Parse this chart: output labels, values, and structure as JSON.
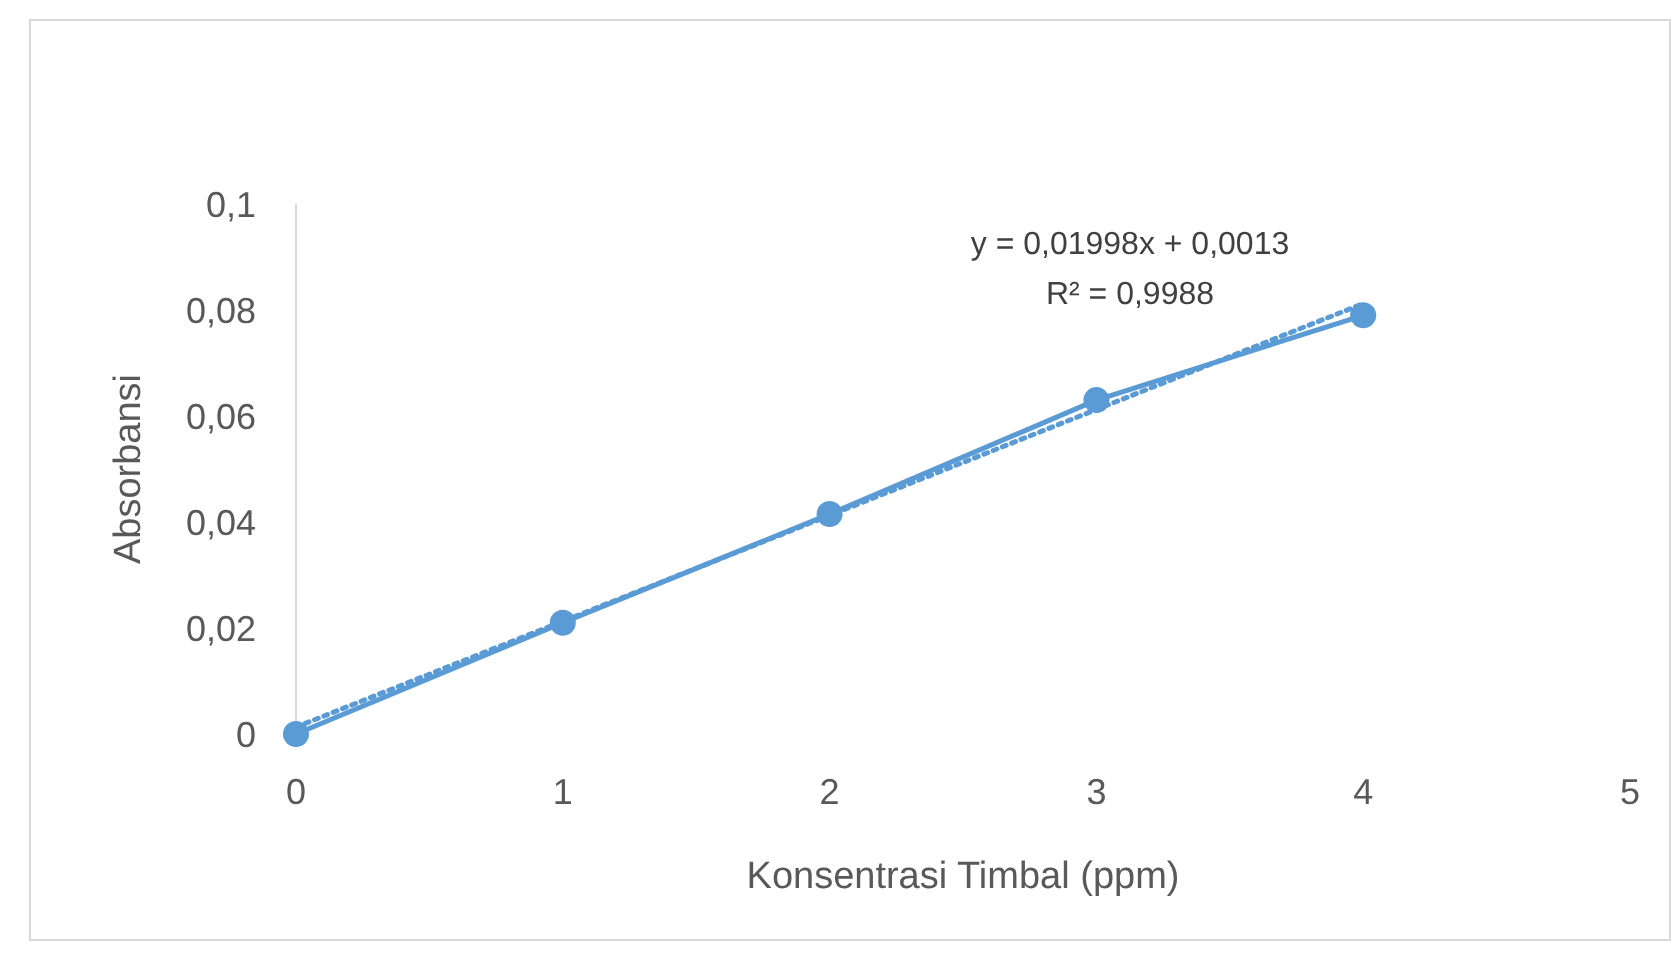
{
  "chart_data": {
    "type": "line",
    "xlabel": "Konsentrasi Timbal (ppm)",
    "ylabel": "Absorbansi",
    "x": [
      0,
      1,
      2,
      3,
      4
    ],
    "series": [
      {
        "color": "#5b9bd5",
        "values": [
          0,
          0.021,
          0.0415,
          0.063,
          0.079
        ],
        "marker": "circle",
        "line_style": "solid"
      },
      {
        "color": "#5b9bd5",
        "x": [
          0,
          4
        ],
        "values": [
          0.0013,
          0.0812
        ],
        "marker": "none",
        "line_style": "dotted"
      }
    ],
    "xlim": [
      0,
      5
    ],
    "xticks": [
      0,
      1,
      2,
      3,
      4,
      5
    ],
    "ylim": [
      0,
      0.1
    ],
    "yticks": [
      0,
      {
        "value": 0.02,
        "label": "0,02"
      },
      {
        "value": 0.04,
        "label": "0,04"
      },
      {
        "value": 0.06,
        "label": "0,06"
      },
      {
        "value": 0.08,
        "label": "0,08"
      },
      {
        "value": 0.1,
        "label": "0,1"
      }
    ],
    "grid": false,
    "annotations": [
      "y = 0,01998x + 0,0013",
      "R² = 0,9988"
    ]
  }
}
